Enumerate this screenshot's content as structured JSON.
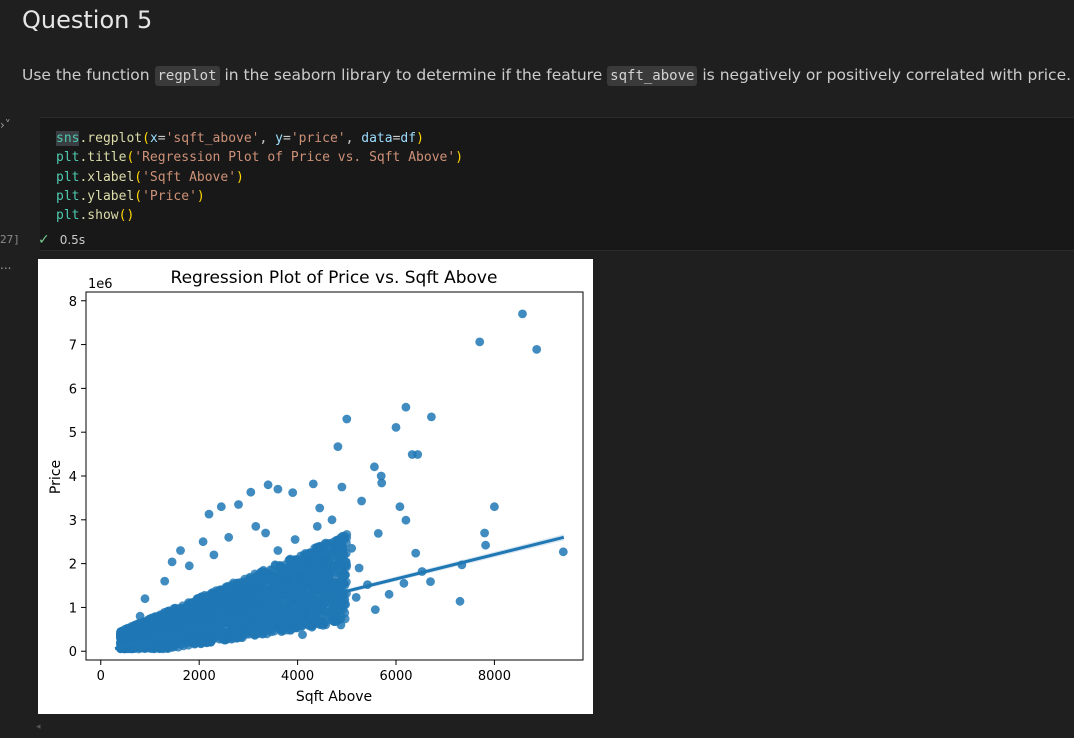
{
  "heading": "Question 5",
  "instruction": {
    "part1": "Use the function ",
    "code1": "regplot",
    "part2": " in the seaborn library to determine if the feature ",
    "code2": "sqft_above",
    "part3": " is negatively or positively correlated with price."
  },
  "cell": {
    "collapse_icon": "›˅",
    "execution_count": "27]",
    "status_time": "0.5s",
    "output_marker": "...",
    "code": {
      "l1_sns": "sns",
      "l1_fn": ".regplot",
      "l1_x_kw": "x",
      "l1_x_val": "'sqft_above'",
      "l1_y_kw": "y",
      "l1_y_val": "'price'",
      "l1_data_kw": "data",
      "l1_data_val": "df",
      "l2_obj": "plt",
      "l2_fn": ".title",
      "l2_str": "'Regression Plot of Price vs. Sqft Above'",
      "l3_obj": "plt",
      "l3_fn": ".xlabel",
      "l3_str": "'Sqft Above'",
      "l4_obj": "plt",
      "l4_fn": ".ylabel",
      "l4_str": "'Price'",
      "l5_obj": "plt",
      "l5_fn": ".show"
    }
  },
  "chart_data": {
    "type": "scatter",
    "title": "Regression Plot of Price vs. Sqft Above",
    "xlabel": "Sqft Above",
    "ylabel": "Price",
    "y_offset_text": "1e6",
    "xlim": [
      -300,
      9800
    ],
    "ylim": [
      -0.2,
      8.2
    ],
    "xticks": [
      0,
      2000,
      4000,
      6000,
      8000
    ],
    "yticks": [
      0,
      1,
      2,
      3,
      4,
      5,
      6,
      7,
      8
    ],
    "y_unit": "1e6",
    "point_color": "#1f77b4",
    "grid": false,
    "regression_line": {
      "x": [
        290,
        9410
      ],
      "y": [
        0.06,
        2.6
      ]
    },
    "points": [
      {
        "x": 8570,
        "y": 7.7
      },
      {
        "x": 7700,
        "y": 7.06
      },
      {
        "x": 8860,
        "y": 6.89
      },
      {
        "x": 6200,
        "y": 5.57
      },
      {
        "x": 6720,
        "y": 5.35
      },
      {
        "x": 5000,
        "y": 5.3
      },
      {
        "x": 6000,
        "y": 5.11
      },
      {
        "x": 4820,
        "y": 4.67
      },
      {
        "x": 6330,
        "y": 4.49
      },
      {
        "x": 6440,
        "y": 4.49
      },
      {
        "x": 5560,
        "y": 4.21
      },
      {
        "x": 5700,
        "y": 4.0
      },
      {
        "x": 5710,
        "y": 3.84
      },
      {
        "x": 3400,
        "y": 3.8
      },
      {
        "x": 3600,
        "y": 3.7
      },
      {
        "x": 4320,
        "y": 3.82
      },
      {
        "x": 4900,
        "y": 3.75
      },
      {
        "x": 3900,
        "y": 3.62
      },
      {
        "x": 8000,
        "y": 3.3
      },
      {
        "x": 7800,
        "y": 2.7
      },
      {
        "x": 7820,
        "y": 2.42
      },
      {
        "x": 9400,
        "y": 2.27
      },
      {
        "x": 7340,
        "y": 1.97
      },
      {
        "x": 7300,
        "y": 1.14
      },
      {
        "x": 6700,
        "y": 1.59
      },
      {
        "x": 6530,
        "y": 1.82
      },
      {
        "x": 6400,
        "y": 2.24
      },
      {
        "x": 6200,
        "y": 2.99
      },
      {
        "x": 6080,
        "y": 3.3
      },
      {
        "x": 5860,
        "y": 1.3
      },
      {
        "x": 5640,
        "y": 2.69
      },
      {
        "x": 5420,
        "y": 1.52
      },
      {
        "x": 5580,
        "y": 0.95
      },
      {
        "x": 5190,
        "y": 1.23
      },
      {
        "x": 4880,
        "y": 0.6
      },
      {
        "x": 6160,
        "y": 1.55
      },
      {
        "x": 2200,
        "y": 3.13
      },
      {
        "x": 2450,
        "y": 3.3
      },
      {
        "x": 2800,
        "y": 3.35
      },
      {
        "x": 3050,
        "y": 3.63
      },
      {
        "x": 4450,
        "y": 3.27
      },
      {
        "x": 5300,
        "y": 3.43
      },
      {
        "x": 1450,
        "y": 2.04
      },
      {
        "x": 1620,
        "y": 2.3
      },
      {
        "x": 1300,
        "y": 1.6
      },
      {
        "x": 2080,
        "y": 2.5
      },
      {
        "x": 900,
        "y": 1.2
      },
      {
        "x": 800,
        "y": 0.8
      },
      {
        "x": 650,
        "y": 0.45
      },
      {
        "x": 430,
        "y": 0.12
      },
      {
        "x": 3350,
        "y": 2.7
      },
      {
        "x": 3950,
        "y": 2.55
      },
      {
        "x": 4400,
        "y": 2.85
      },
      {
        "x": 4700,
        "y": 3.0
      },
      {
        "x": 5100,
        "y": 2.35
      },
      {
        "x": 5250,
        "y": 1.9
      },
      {
        "x": 4950,
        "y": 1.55
      },
      {
        "x": 4550,
        "y": 2.1
      },
      {
        "x": 4200,
        "y": 1.45
      },
      {
        "x": 3800,
        "y": 0.55
      },
      {
        "x": 4100,
        "y": 0.38
      },
      {
        "x": 3600,
        "y": 2.3
      },
      {
        "x": 3150,
        "y": 2.85
      },
      {
        "x": 2600,
        "y": 2.6
      },
      {
        "x": 2300,
        "y": 2.2
      },
      {
        "x": 1800,
        "y": 1.95
      }
    ]
  }
}
